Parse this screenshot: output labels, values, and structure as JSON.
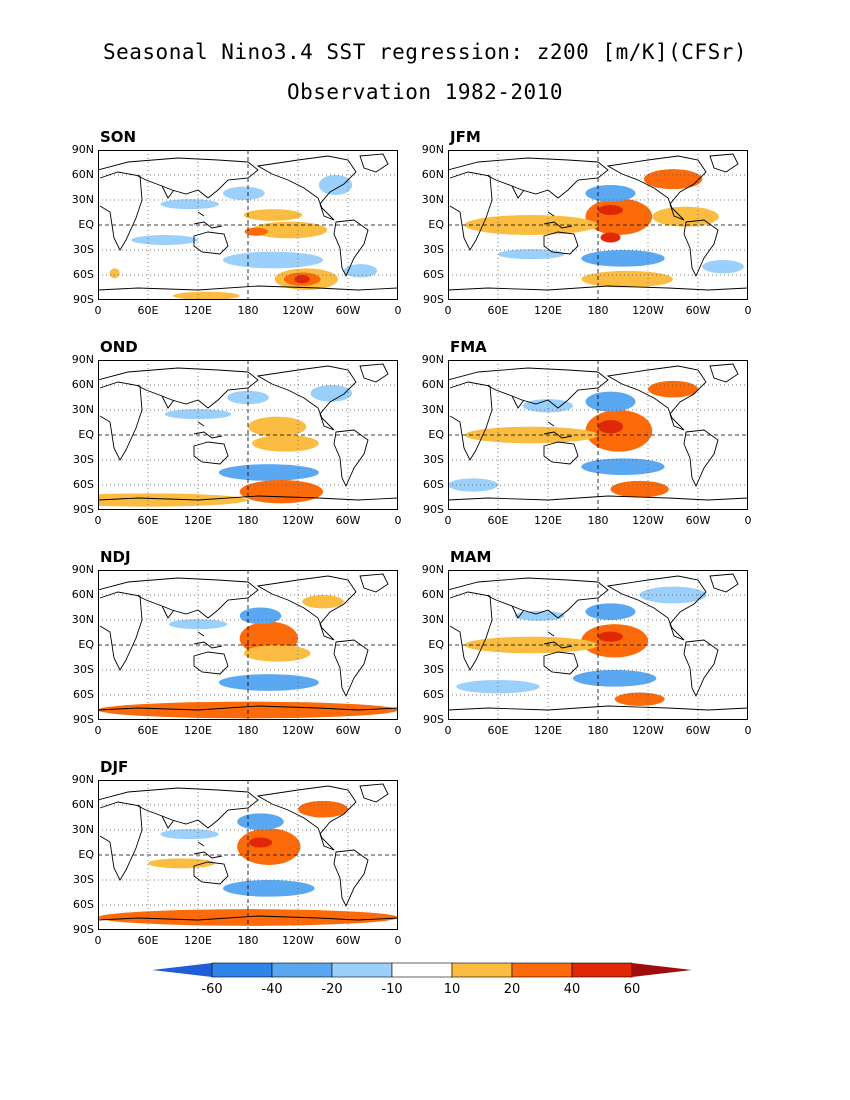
{
  "title": "Seasonal Nino3.4 SST regression: z200 [m/K](CFSr)",
  "subtitle": "Observation 1982-2010",
  "colors": {
    "neg60": "#1e5fd8",
    "neg40": "#2f86ea",
    "neg20": "#5aa8f2",
    "neg10": "#9ad0fb",
    "white": "#ffffff",
    "pos10": "#fbbd41",
    "pos20": "#fc6a0a",
    "pos40": "#e02807",
    "pos60": "#a00c0c"
  },
  "chart_data": {
    "type": "heatmap",
    "panels": [
      {
        "id": "SON",
        "label": "SON",
        "blobs": [
          {
            "lon": 210,
            "lat": 12,
            "a": 35,
            "b": 7,
            "level": "pos10"
          },
          {
            "lon": 230,
            "lat": -6,
            "a": 45,
            "b": 10,
            "level": "pos10"
          },
          {
            "lon": 190,
            "lat": -8,
            "a": 14,
            "b": 5,
            "level": "pos20"
          },
          {
            "lon": 210,
            "lat": -42,
            "a": 60,
            "b": 10,
            "level": "neg10"
          },
          {
            "lon": 250,
            "lat": -65,
            "a": 38,
            "b": 13,
            "level": "pos10"
          },
          {
            "lon": 245,
            "lat": -65,
            "a": 22,
            "b": 8,
            "level": "pos20"
          },
          {
            "lon": 245,
            "lat": -65,
            "a": 9,
            "b": 5,
            "level": "pos40"
          },
          {
            "lon": 80,
            "lat": -18,
            "a": 40,
            "b": 6,
            "level": "neg10"
          },
          {
            "lon": 110,
            "lat": 25,
            "a": 35,
            "b": 6,
            "level": "neg10"
          },
          {
            "lon": 175,
            "lat": 38,
            "a": 25,
            "b": 8,
            "level": "neg10"
          },
          {
            "lon": 285,
            "lat": 48,
            "a": 20,
            "b": 12,
            "level": "neg10"
          },
          {
            "lon": 20,
            "lat": -58,
            "a": 6,
            "b": 6,
            "level": "pos10"
          },
          {
            "lon": 315,
            "lat": -55,
            "a": 20,
            "b": 8,
            "level": "neg10"
          },
          {
            "lon": 130,
            "lat": -85,
            "a": 40,
            "b": 5,
            "level": "pos10"
          }
        ]
      },
      {
        "id": "JFM",
        "label": "JFM",
        "blobs": [
          {
            "lon": 205,
            "lat": 10,
            "a": 40,
            "b": 22,
            "level": "pos20"
          },
          {
            "lon": 195,
            "lat": 18,
            "a": 15,
            "b": 6,
            "level": "pos40"
          },
          {
            "lon": 195,
            "lat": -15,
            "a": 12,
            "b": 6,
            "level": "pos40"
          },
          {
            "lon": 100,
            "lat": 0,
            "a": 80,
            "b": 12,
            "level": "pos10"
          },
          {
            "lon": 285,
            "lat": 10,
            "a": 40,
            "b": 12,
            "level": "pos10"
          },
          {
            "lon": 195,
            "lat": 38,
            "a": 30,
            "b": 10,
            "level": "neg20"
          },
          {
            "lon": 270,
            "lat": 55,
            "a": 35,
            "b": 12,
            "level": "pos20"
          },
          {
            "lon": 210,
            "lat": -40,
            "a": 50,
            "b": 10,
            "level": "neg20"
          },
          {
            "lon": 215,
            "lat": -65,
            "a": 55,
            "b": 10,
            "level": "pos10"
          },
          {
            "lon": 100,
            "lat": -35,
            "a": 40,
            "b": 6,
            "level": "neg10"
          },
          {
            "lon": 330,
            "lat": -50,
            "a": 25,
            "b": 8,
            "level": "neg10"
          }
        ]
      },
      {
        "id": "OND",
        "label": "OND",
        "blobs": [
          {
            "lon": 215,
            "lat": 10,
            "a": 35,
            "b": 12,
            "level": "pos10"
          },
          {
            "lon": 225,
            "lat": -10,
            "a": 40,
            "b": 10,
            "level": "pos10"
          },
          {
            "lon": 205,
            "lat": -45,
            "a": 60,
            "b": 10,
            "level": "neg20"
          },
          {
            "lon": 220,
            "lat": -68,
            "a": 50,
            "b": 14,
            "level": "pos20"
          },
          {
            "lon": 60,
            "lat": -78,
            "a": 120,
            "b": 8,
            "level": "pos10"
          },
          {
            "lon": 120,
            "lat": 25,
            "a": 40,
            "b": 6,
            "level": "neg10"
          },
          {
            "lon": 180,
            "lat": 45,
            "a": 25,
            "b": 8,
            "level": "neg10"
          },
          {
            "lon": 280,
            "lat": 50,
            "a": 25,
            "b": 10,
            "level": "neg10"
          }
        ]
      },
      {
        "id": "FMA",
        "label": "FMA",
        "blobs": [
          {
            "lon": 205,
            "lat": 5,
            "a": 40,
            "b": 25,
            "level": "pos20"
          },
          {
            "lon": 195,
            "lat": 10,
            "a": 15,
            "b": 8,
            "level": "pos40"
          },
          {
            "lon": 100,
            "lat": 0,
            "a": 80,
            "b": 10,
            "level": "pos10"
          },
          {
            "lon": 195,
            "lat": 40,
            "a": 30,
            "b": 12,
            "level": "neg20"
          },
          {
            "lon": 270,
            "lat": 55,
            "a": 30,
            "b": 10,
            "level": "pos20"
          },
          {
            "lon": 210,
            "lat": -38,
            "a": 50,
            "b": 10,
            "level": "neg20"
          },
          {
            "lon": 230,
            "lat": -65,
            "a": 35,
            "b": 10,
            "level": "pos20"
          },
          {
            "lon": 30,
            "lat": -60,
            "a": 30,
            "b": 8,
            "level": "neg10"
          },
          {
            "lon": 120,
            "lat": 35,
            "a": 30,
            "b": 8,
            "level": "neg10"
          }
        ]
      },
      {
        "id": "NDJ",
        "label": "NDJ",
        "blobs": [
          {
            "lon": 205,
            "lat": 8,
            "a": 35,
            "b": 20,
            "level": "pos20"
          },
          {
            "lon": 215,
            "lat": -10,
            "a": 40,
            "b": 10,
            "level": "pos10"
          },
          {
            "lon": 195,
            "lat": 35,
            "a": 25,
            "b": 10,
            "level": "neg20"
          },
          {
            "lon": 205,
            "lat": -45,
            "a": 60,
            "b": 10,
            "level": "neg20"
          },
          {
            "lon": 180,
            "lat": -78,
            "a": 180,
            "b": 10,
            "level": "pos20"
          },
          {
            "lon": 270,
            "lat": 52,
            "a": 25,
            "b": 8,
            "level": "pos10"
          },
          {
            "lon": 120,
            "lat": 25,
            "a": 35,
            "b": 6,
            "level": "neg10"
          }
        ]
      },
      {
        "id": "MAM",
        "label": "MAM",
        "blobs": [
          {
            "lon": 200,
            "lat": 5,
            "a": 40,
            "b": 20,
            "level": "pos20"
          },
          {
            "lon": 195,
            "lat": 10,
            "a": 15,
            "b": 6,
            "level": "pos40"
          },
          {
            "lon": 100,
            "lat": 0,
            "a": 80,
            "b": 10,
            "level": "pos10"
          },
          {
            "lon": 195,
            "lat": 40,
            "a": 30,
            "b": 10,
            "level": "neg20"
          },
          {
            "lon": 270,
            "lat": 60,
            "a": 40,
            "b": 10,
            "level": "neg10"
          },
          {
            "lon": 200,
            "lat": -40,
            "a": 50,
            "b": 10,
            "level": "neg20"
          },
          {
            "lon": 230,
            "lat": -65,
            "a": 30,
            "b": 8,
            "level": "pos20"
          },
          {
            "lon": 60,
            "lat": -50,
            "a": 50,
            "b": 8,
            "level": "neg10"
          },
          {
            "lon": 110,
            "lat": 35,
            "a": 30,
            "b": 6,
            "level": "neg10"
          }
        ]
      },
      {
        "id": "DJF",
        "label": "DJF",
        "blobs": [
          {
            "lon": 205,
            "lat": 10,
            "a": 38,
            "b": 22,
            "level": "pos20"
          },
          {
            "lon": 195,
            "lat": 15,
            "a": 14,
            "b": 6,
            "level": "pos40"
          },
          {
            "lon": 195,
            "lat": 40,
            "a": 28,
            "b": 10,
            "level": "neg20"
          },
          {
            "lon": 270,
            "lat": 55,
            "a": 30,
            "b": 10,
            "level": "pos20"
          },
          {
            "lon": 205,
            "lat": -40,
            "a": 55,
            "b": 10,
            "level": "neg20"
          },
          {
            "lon": 180,
            "lat": -75,
            "a": 180,
            "b": 10,
            "level": "pos20"
          },
          {
            "lon": 100,
            "lat": -10,
            "a": 40,
            "b": 6,
            "level": "pos10"
          },
          {
            "lon": 110,
            "lat": 25,
            "a": 35,
            "b": 6,
            "level": "neg10"
          }
        ]
      }
    ],
    "y_ticks": [
      "90N",
      "60N",
      "30N",
      "EQ",
      "30S",
      "60S",
      "90S"
    ],
    "x_ticks": [
      "0",
      "60E",
      "120E",
      "180",
      "120W",
      "60W",
      "0"
    ],
    "colorbar": {
      "levels": [
        "-60",
        "-40",
        "-20",
        "-10",
        "10",
        "20",
        "40",
        "60"
      ],
      "colors": [
        "#1e5fd8",
        "#2f86ea",
        "#5aa8f2",
        "#9ad0fb",
        "#ffffff",
        "#fbbd41",
        "#fc6a0a",
        "#e02807",
        "#a00c0c"
      ]
    }
  }
}
